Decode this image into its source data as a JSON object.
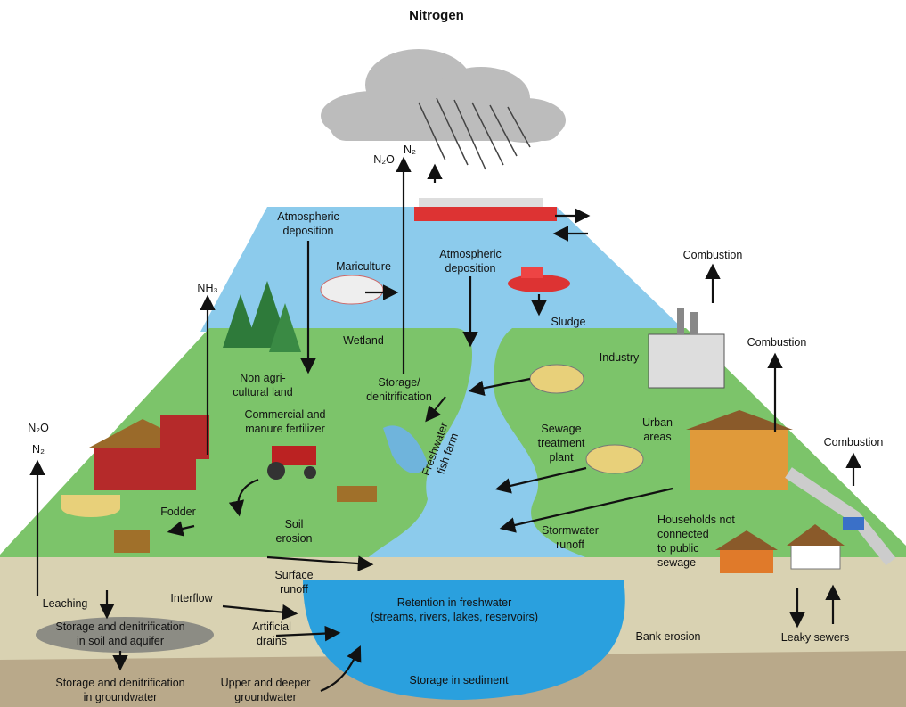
{
  "title": "Nitrogen",
  "labels": [
    {
      "lines": [
        "N₂O"
      ]
    },
    {
      "lines": [
        "N₂"
      ]
    },
    {
      "lines": [
        "Atmospheric",
        "deposition"
      ]
    },
    {
      "lines": [
        "Mariculture"
      ]
    },
    {
      "lines": [
        "Atmospheric",
        "deposition"
      ]
    },
    {
      "lines": [
        "Combustion"
      ]
    },
    {
      "lines": [
        "Combustion"
      ]
    },
    {
      "lines": [
        "Combustion"
      ]
    },
    {
      "lines": [
        "Sludge"
      ]
    },
    {
      "lines": [
        "NH₃"
      ]
    },
    {
      "lines": [
        "Wetland"
      ]
    },
    {
      "lines": [
        "Industry"
      ]
    },
    {
      "lines": [
        "Non agri-",
        "cultural land"
      ]
    },
    {
      "lines": [
        "Storage/",
        "denitrification"
      ]
    },
    {
      "lines": [
        "Commercial and",
        "manure fertilizer"
      ]
    },
    {
      "lines": [
        "Sewage",
        "treatment",
        "plant"
      ]
    },
    {
      "lines": [
        "Urban",
        "areas"
      ]
    },
    {
      "lines": [
        "N₂O"
      ]
    },
    {
      "lines": [
        "N₂"
      ]
    },
    {
      "lines": [
        "Freshwater",
        "fish farm"
      ]
    },
    {
      "lines": [
        "Fodder"
      ]
    },
    {
      "lines": [
        "Soil",
        "erosion"
      ]
    },
    {
      "lines": [
        "Surface",
        "runoff"
      ]
    },
    {
      "lines": [
        "Stormwater",
        "runoff"
      ]
    },
    {
      "lines": [
        "Households not",
        "connected",
        "to public",
        "sewage"
      ]
    },
    {
      "lines": [
        "Leaching"
      ]
    },
    {
      "lines": [
        "Interflow"
      ]
    },
    {
      "lines": [
        "Storage and denitrification",
        "in soil and aquifer"
      ]
    },
    {
      "lines": [
        "Artificial",
        "drains"
      ]
    },
    {
      "lines": [
        "Retention in freshwater",
        "(streams, rivers, lakes, reservoirs)"
      ]
    },
    {
      "lines": [
        "Bank erosion"
      ]
    },
    {
      "lines": [
        "Leaky sewers"
      ]
    },
    {
      "lines": [
        "Storage and denitrification",
        "in groundwater"
      ]
    },
    {
      "lines": [
        "Upper and deeper",
        "groundwater"
      ]
    },
    {
      "lines": [
        "Storage in sediment"
      ]
    }
  ]
}
